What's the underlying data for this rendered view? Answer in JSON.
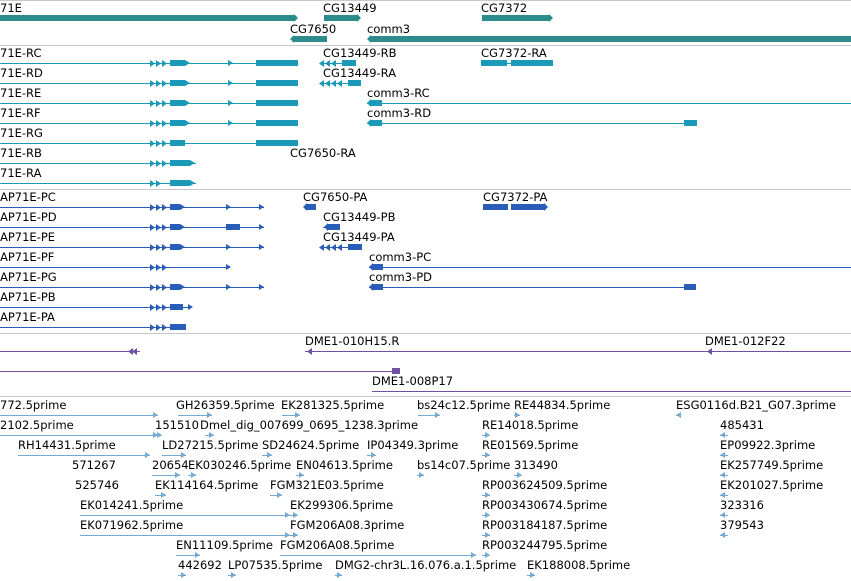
{
  "colors": {
    "gene": "#2e8b8b",
    "mrna": "#1a9ab8",
    "protein": "#2a5db8",
    "clone": "#7050a0",
    "est": "#74aad2",
    "separator": "#c8c8c8"
  },
  "tracks": {
    "gene": {
      "labels": [
        "71E",
        "CG13449",
        "CG7372",
        "CG7650",
        "comm3"
      ]
    },
    "mrna": {
      "labels": [
        "71E-RC",
        "CG13449-RB",
        "CG7372-RA",
        "71E-RD",
        "CG13449-RA",
        "71E-RE",
        "comm3-RC",
        "71E-RF",
        "comm3-RD",
        "71E-RG",
        "71E-RB",
        "CG7650-RA",
        "71E-RA"
      ]
    },
    "protein": {
      "labels": [
        "AP71E-PC",
        "CG7650-PA",
        "CG7372-PA",
        "AP71E-PD",
        "CG13449-PB",
        "AP71E-PE",
        "CG13449-PA",
        "AP71E-PF",
        "comm3-PC",
        "AP71E-PG",
        "comm3-PD",
        "AP71E-PB",
        "AP71E-PA"
      ]
    },
    "clone": {
      "labels": [
        "DME1-010H15.R",
        "DME1-012F22",
        "DME1-008P17"
      ]
    },
    "est": {
      "labels": [
        "772.5prime",
        "GH26359.5prime",
        "EK281325.5prime",
        "bs24c12.5prime",
        "RE44834.5prime",
        "ESG0116d.B21_G07.3prime",
        "2102.5prime",
        "151510",
        "Dmel_dig_007699_0695_1238.3prime",
        "RE14018.5prime",
        "485431",
        "RH14431.5prime",
        "LD27215.5prime",
        "SD24624.5prime",
        "IP04349.3prime",
        "RE01569.5prime",
        "EP09922.3prime",
        "571267",
        "20654",
        "EK030246.5prime",
        "EN04613.5prime",
        "bs14c07.5prime",
        "313490",
        "EK257749.5prime",
        "525746",
        "EK114164.5prime",
        "FGM321E03.5prime",
        "RP003624509.5prime",
        "EK201027.5prime",
        "EK014241.5prime",
        "EK299306.5prime",
        "RP003430674.5prime",
        "323316",
        "EK071962.5prime",
        "FGM206A08.3prime",
        "RP003184187.5prime",
        "379543",
        "EN11109.5prime",
        "FGM206A08.5prime",
        "RP003244795.5prime",
        "442692",
        "LP07535.5prime",
        "DMG2-chr3L.16.076.a.1.5prime",
        "EK188008.5prime"
      ]
    }
  }
}
